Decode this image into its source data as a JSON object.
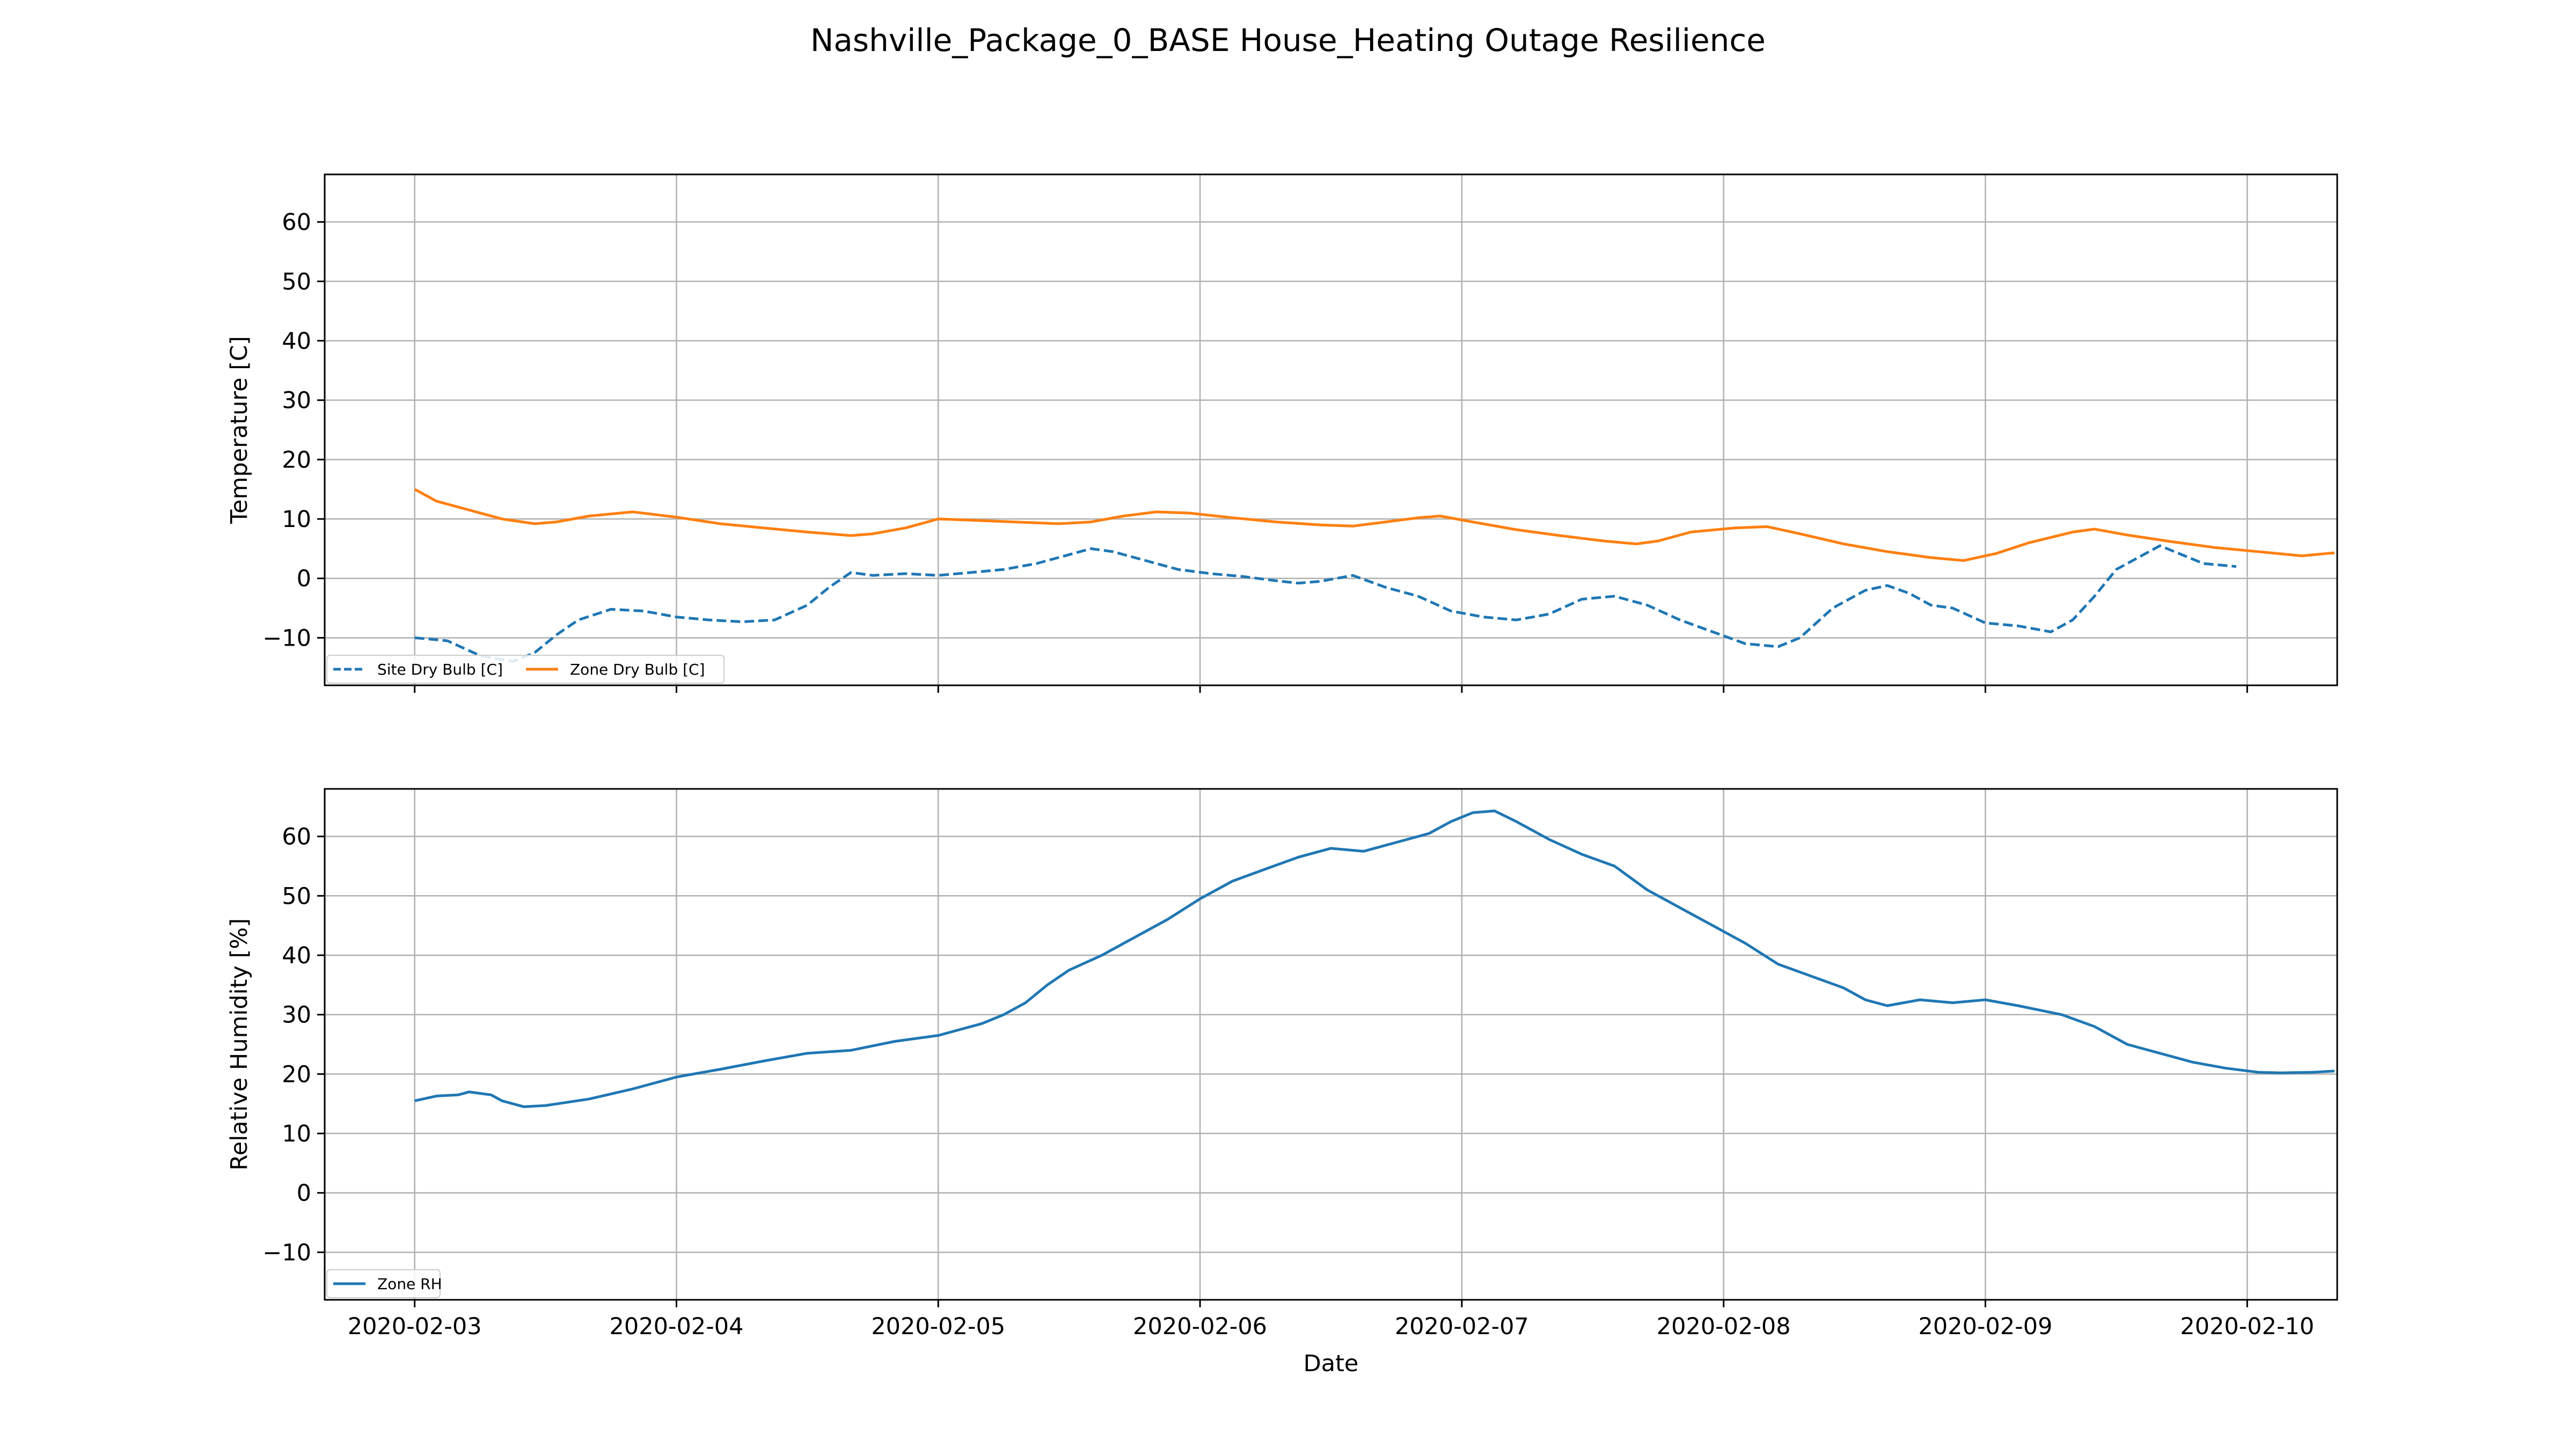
{
  "figure_title": "Nashville_Package_0_BASE House_Heating Outage Resilience",
  "colors": {
    "site_dry_bulb": "#1f77b4",
    "zone_dry_bulb": "#ff7f0e",
    "zone_rh": "#1f77b4",
    "grid": "#b0b0b0",
    "frame": "#000000"
  },
  "chart_data": [
    {
      "type": "line",
      "ylabel": "Temperature [C]",
      "xlabel": "",
      "ylim": [
        -18,
        68
      ],
      "yticks": [
        -10,
        0,
        10,
        20,
        30,
        40,
        50,
        60
      ],
      "xlim": [
        "2020-02-02T15:45",
        "2020-02-10T08:15"
      ],
      "xticks": [
        "2020-02-03",
        "2020-02-04",
        "2020-02-05",
        "2020-02-06",
        "2020-02-07",
        "2020-02-08",
        "2020-02-09",
        "2020-02-10"
      ],
      "show_xtick_labels": false,
      "grid": true,
      "legend_placement": "lower-left",
      "legend_columns": 2,
      "series": [
        {
          "name": "Site Dry Bulb [C]",
          "style": "dashed",
          "color_key": "site_dry_bulb",
          "points": [
            [
              "2020-02-03T00:00",
              -10
            ],
            [
              "2020-02-03T03:00",
              -10.5
            ],
            [
              "2020-02-03T06:00",
              -13
            ],
            [
              "2020-02-03T09:00",
              -14
            ],
            [
              "2020-02-03T11:00",
              -12.5
            ],
            [
              "2020-02-03T13:00",
              -9.5
            ],
            [
              "2020-02-03T15:00",
              -7
            ],
            [
              "2020-02-03T18:00",
              -5.2
            ],
            [
              "2020-02-03T21:00",
              -5.5
            ],
            [
              "2020-02-04T00:00",
              -6.5
            ],
            [
              "2020-02-04T03:00",
              -7
            ],
            [
              "2020-02-04T06:00",
              -7.3
            ],
            [
              "2020-02-04T09:00",
              -7
            ],
            [
              "2020-02-04T12:00",
              -4.5
            ],
            [
              "2020-02-04T14:00",
              -1.5
            ],
            [
              "2020-02-04T16:00",
              1
            ],
            [
              "2020-02-04T18:00",
              0.5
            ],
            [
              "2020-02-04T21:00",
              0.8
            ],
            [
              "2020-02-05T00:00",
              0.5
            ],
            [
              "2020-02-05T03:00",
              1
            ],
            [
              "2020-02-05T06:00",
              1.5
            ],
            [
              "2020-02-05T09:00",
              2.5
            ],
            [
              "2020-02-05T11:00",
              3.5
            ],
            [
              "2020-02-05T14:00",
              5
            ],
            [
              "2020-02-05T16:00",
              4.5
            ],
            [
              "2020-02-05T19:00",
              3
            ],
            [
              "2020-02-05T22:00",
              1.5
            ],
            [
              "2020-02-06T01:00",
              0.8
            ],
            [
              "2020-02-06T04:00",
              0.3
            ],
            [
              "2020-02-06T07:00",
              -0.4
            ],
            [
              "2020-02-06T09:00",
              -0.8
            ],
            [
              "2020-02-06T11:00",
              -0.5
            ],
            [
              "2020-02-06T14:00",
              0.5
            ],
            [
              "2020-02-06T17:00",
              -1.5
            ],
            [
              "2020-02-06T20:00",
              -3
            ],
            [
              "2020-02-06T23:00",
              -5.5
            ],
            [
              "2020-02-07T02:00",
              -6.5
            ],
            [
              "2020-02-07T05:00",
              -7
            ],
            [
              "2020-02-07T08:00",
              -6
            ],
            [
              "2020-02-07T11:00",
              -3.5
            ],
            [
              "2020-02-07T14:00",
              -3
            ],
            [
              "2020-02-07T17:00",
              -4.5
            ],
            [
              "2020-02-07T20:00",
              -7
            ],
            [
              "2020-02-07T23:00",
              -9
            ],
            [
              "2020-02-08T02:00",
              -11
            ],
            [
              "2020-02-08T05:00",
              -11.5
            ],
            [
              "2020-02-08T07:00",
              -10
            ],
            [
              "2020-02-08T10:00",
              -5
            ],
            [
              "2020-02-08T13:00",
              -2
            ],
            [
              "2020-02-08T15:00",
              -1.2
            ],
            [
              "2020-02-08T17:00",
              -2.5
            ],
            [
              "2020-02-08T19:00",
              -4.5
            ],
            [
              "2020-02-08T21:00",
              -5
            ],
            [
              "2020-02-09T00:00",
              -7.5
            ],
            [
              "2020-02-09T03:00",
              -8
            ],
            [
              "2020-02-09T06:00",
              -9
            ],
            [
              "2020-02-09T08:00",
              -7
            ],
            [
              "2020-02-09T10:00",
              -3
            ],
            [
              "2020-02-09T12:00",
              1.5
            ],
            [
              "2020-02-09T14:00",
              3.5
            ],
            [
              "2020-02-09T16:00",
              5.5
            ],
            [
              "2020-02-09T18:00",
              4
            ],
            [
              "2020-02-09T20:00",
              2.5
            ],
            [
              "2020-02-09T23:00",
              2
            ]
          ]
        },
        {
          "name": "Zone Dry Bulb [C]",
          "style": "solid",
          "color_key": "zone_dry_bulb",
          "points": [
            [
              "2020-02-03T00:00",
              15
            ],
            [
              "2020-02-03T02:00",
              13
            ],
            [
              "2020-02-03T05:00",
              11.5
            ],
            [
              "2020-02-03T08:00",
              10
            ],
            [
              "2020-02-03T11:00",
              9.2
            ],
            [
              "2020-02-03T13:00",
              9.5
            ],
            [
              "2020-02-03T16:00",
              10.5
            ],
            [
              "2020-02-03T20:00",
              11.2
            ],
            [
              "2020-02-04T00:00",
              10.3
            ],
            [
              "2020-02-04T04:00",
              9.2
            ],
            [
              "2020-02-04T08:00",
              8.5
            ],
            [
              "2020-02-04T12:00",
              7.8
            ],
            [
              "2020-02-04T16:00",
              7.2
            ],
            [
              "2020-02-04T18:00",
              7.5
            ],
            [
              "2020-02-04T21:00",
              8.5
            ],
            [
              "2020-02-05T00:00",
              10
            ],
            [
              "2020-02-05T03:00",
              9.8
            ],
            [
              "2020-02-05T07:00",
              9.5
            ],
            [
              "2020-02-05T11:00",
              9.2
            ],
            [
              "2020-02-05T14:00",
              9.5
            ],
            [
              "2020-02-05T17:00",
              10.5
            ],
            [
              "2020-02-05T20:00",
              11.2
            ],
            [
              "2020-02-05T23:00",
              11
            ],
            [
              "2020-02-06T03:00",
              10.2
            ],
            [
              "2020-02-06T07:00",
              9.5
            ],
            [
              "2020-02-06T11:00",
              9
            ],
            [
              "2020-02-06T14:00",
              8.8
            ],
            [
              "2020-02-06T17:00",
              9.5
            ],
            [
              "2020-02-06T20:00",
              10.2
            ],
            [
              "2020-02-06T22:00",
              10.5
            ],
            [
              "2020-02-07T01:00",
              9.5
            ],
            [
              "2020-02-07T05:00",
              8.2
            ],
            [
              "2020-02-07T09:00",
              7.2
            ],
            [
              "2020-02-07T13:00",
              6.3
            ],
            [
              "2020-02-07T16:00",
              5.8
            ],
            [
              "2020-02-07T18:00",
              6.3
            ],
            [
              "2020-02-07T21:00",
              7.8
            ],
            [
              "2020-02-08T01:00",
              8.5
            ],
            [
              "2020-02-08T04:00",
              8.7
            ],
            [
              "2020-02-08T07:00",
              7.5
            ],
            [
              "2020-02-08T11:00",
              5.8
            ],
            [
              "2020-02-08T15:00",
              4.5
            ],
            [
              "2020-02-08T19:00",
              3.5
            ],
            [
              "2020-02-08T22:00",
              3
            ],
            [
              "2020-02-09T01:00",
              4.2
            ],
            [
              "2020-02-09T04:00",
              6
            ],
            [
              "2020-02-09T08:00",
              7.8
            ],
            [
              "2020-02-09T10:00",
              8.3
            ],
            [
              "2020-02-09T13:00",
              7.3
            ],
            [
              "2020-02-09T17:00",
              6.2
            ],
            [
              "2020-02-09T21:00",
              5.2
            ],
            [
              "2020-02-10T01:00",
              4.5
            ],
            [
              "2020-02-10T05:00",
              3.8
            ],
            [
              "2020-02-10T08:00",
              4.3
            ]
          ]
        }
      ]
    },
    {
      "type": "line",
      "ylabel": "Relative Humidity [%]",
      "xlabel": "Date",
      "ylim": [
        -18,
        68
      ],
      "yticks": [
        -10,
        0,
        10,
        20,
        30,
        40,
        50,
        60
      ],
      "xlim": [
        "2020-02-02T15:45",
        "2020-02-10T08:15"
      ],
      "xticks": [
        "2020-02-03",
        "2020-02-04",
        "2020-02-05",
        "2020-02-06",
        "2020-02-07",
        "2020-02-08",
        "2020-02-09",
        "2020-02-10"
      ],
      "show_xtick_labels": true,
      "grid": true,
      "legend_placement": "lower-left",
      "legend_columns": 1,
      "series": [
        {
          "name": "Zone RH",
          "style": "solid",
          "color_key": "zone_rh",
          "points": [
            [
              "2020-02-03T00:00",
              15.5
            ],
            [
              "2020-02-03T02:00",
              16.3
            ],
            [
              "2020-02-03T04:00",
              16.5
            ],
            [
              "2020-02-03T05:00",
              17
            ],
            [
              "2020-02-03T07:00",
              16.5
            ],
            [
              "2020-02-03T08:00",
              15.5
            ],
            [
              "2020-02-03T10:00",
              14.5
            ],
            [
              "2020-02-03T12:00",
              14.7
            ],
            [
              "2020-02-03T16:00",
              15.8
            ],
            [
              "2020-02-03T20:00",
              17.5
            ],
            [
              "2020-02-04T00:00",
              19.5
            ],
            [
              "2020-02-04T04:00",
              20.8
            ],
            [
              "2020-02-04T08:00",
              22.2
            ],
            [
              "2020-02-04T12:00",
              23.5
            ],
            [
              "2020-02-04T16:00",
              24
            ],
            [
              "2020-02-04T20:00",
              25.5
            ],
            [
              "2020-02-05T00:00",
              26.5
            ],
            [
              "2020-02-05T04:00",
              28.5
            ],
            [
              "2020-02-05T06:00",
              30
            ],
            [
              "2020-02-05T08:00",
              32
            ],
            [
              "2020-02-05T10:00",
              35
            ],
            [
              "2020-02-05T12:00",
              37.5
            ],
            [
              "2020-02-05T15:00",
              40
            ],
            [
              "2020-02-05T18:00",
              43
            ],
            [
              "2020-02-05T21:00",
              46
            ],
            [
              "2020-02-06T00:00",
              49.5
            ],
            [
              "2020-02-06T03:00",
              52.5
            ],
            [
              "2020-02-06T06:00",
              54.5
            ],
            [
              "2020-02-06T09:00",
              56.5
            ],
            [
              "2020-02-06T12:00",
              58
            ],
            [
              "2020-02-06T15:00",
              57.5
            ],
            [
              "2020-02-06T18:00",
              59
            ],
            [
              "2020-02-06T21:00",
              60.5
            ],
            [
              "2020-02-06T23:00",
              62.5
            ],
            [
              "2020-02-07T01:00",
              64
            ],
            [
              "2020-02-07T03:00",
              64.3
            ],
            [
              "2020-02-07T05:00",
              62.5
            ],
            [
              "2020-02-07T08:00",
              59.5
            ],
            [
              "2020-02-07T11:00",
              57
            ],
            [
              "2020-02-07T14:00",
              55
            ],
            [
              "2020-02-07T17:00",
              51
            ],
            [
              "2020-02-07T20:00",
              48
            ],
            [
              "2020-02-07T23:00",
              45
            ],
            [
              "2020-02-08T02:00",
              42
            ],
            [
              "2020-02-08T05:00",
              38.5
            ],
            [
              "2020-02-08T08:00",
              36.5
            ],
            [
              "2020-02-08T11:00",
              34.5
            ],
            [
              "2020-02-08T13:00",
              32.5
            ],
            [
              "2020-02-08T15:00",
              31.5
            ],
            [
              "2020-02-08T18:00",
              32.5
            ],
            [
              "2020-02-08T21:00",
              32
            ],
            [
              "2020-02-09T00:00",
              32.5
            ],
            [
              "2020-02-09T03:00",
              31.5
            ],
            [
              "2020-02-09T07:00",
              30
            ],
            [
              "2020-02-09T10:00",
              28
            ],
            [
              "2020-02-09T13:00",
              25
            ],
            [
              "2020-02-09T16:00",
              23.5
            ],
            [
              "2020-02-09T19:00",
              22
            ],
            [
              "2020-02-09T22:00",
              21
            ],
            [
              "2020-02-10T01:00",
              20.3
            ],
            [
              "2020-02-10T03:00",
              20.2
            ],
            [
              "2020-02-10T06:00",
              20.3
            ],
            [
              "2020-02-10T08:00",
              20.5
            ]
          ]
        }
      ]
    }
  ]
}
